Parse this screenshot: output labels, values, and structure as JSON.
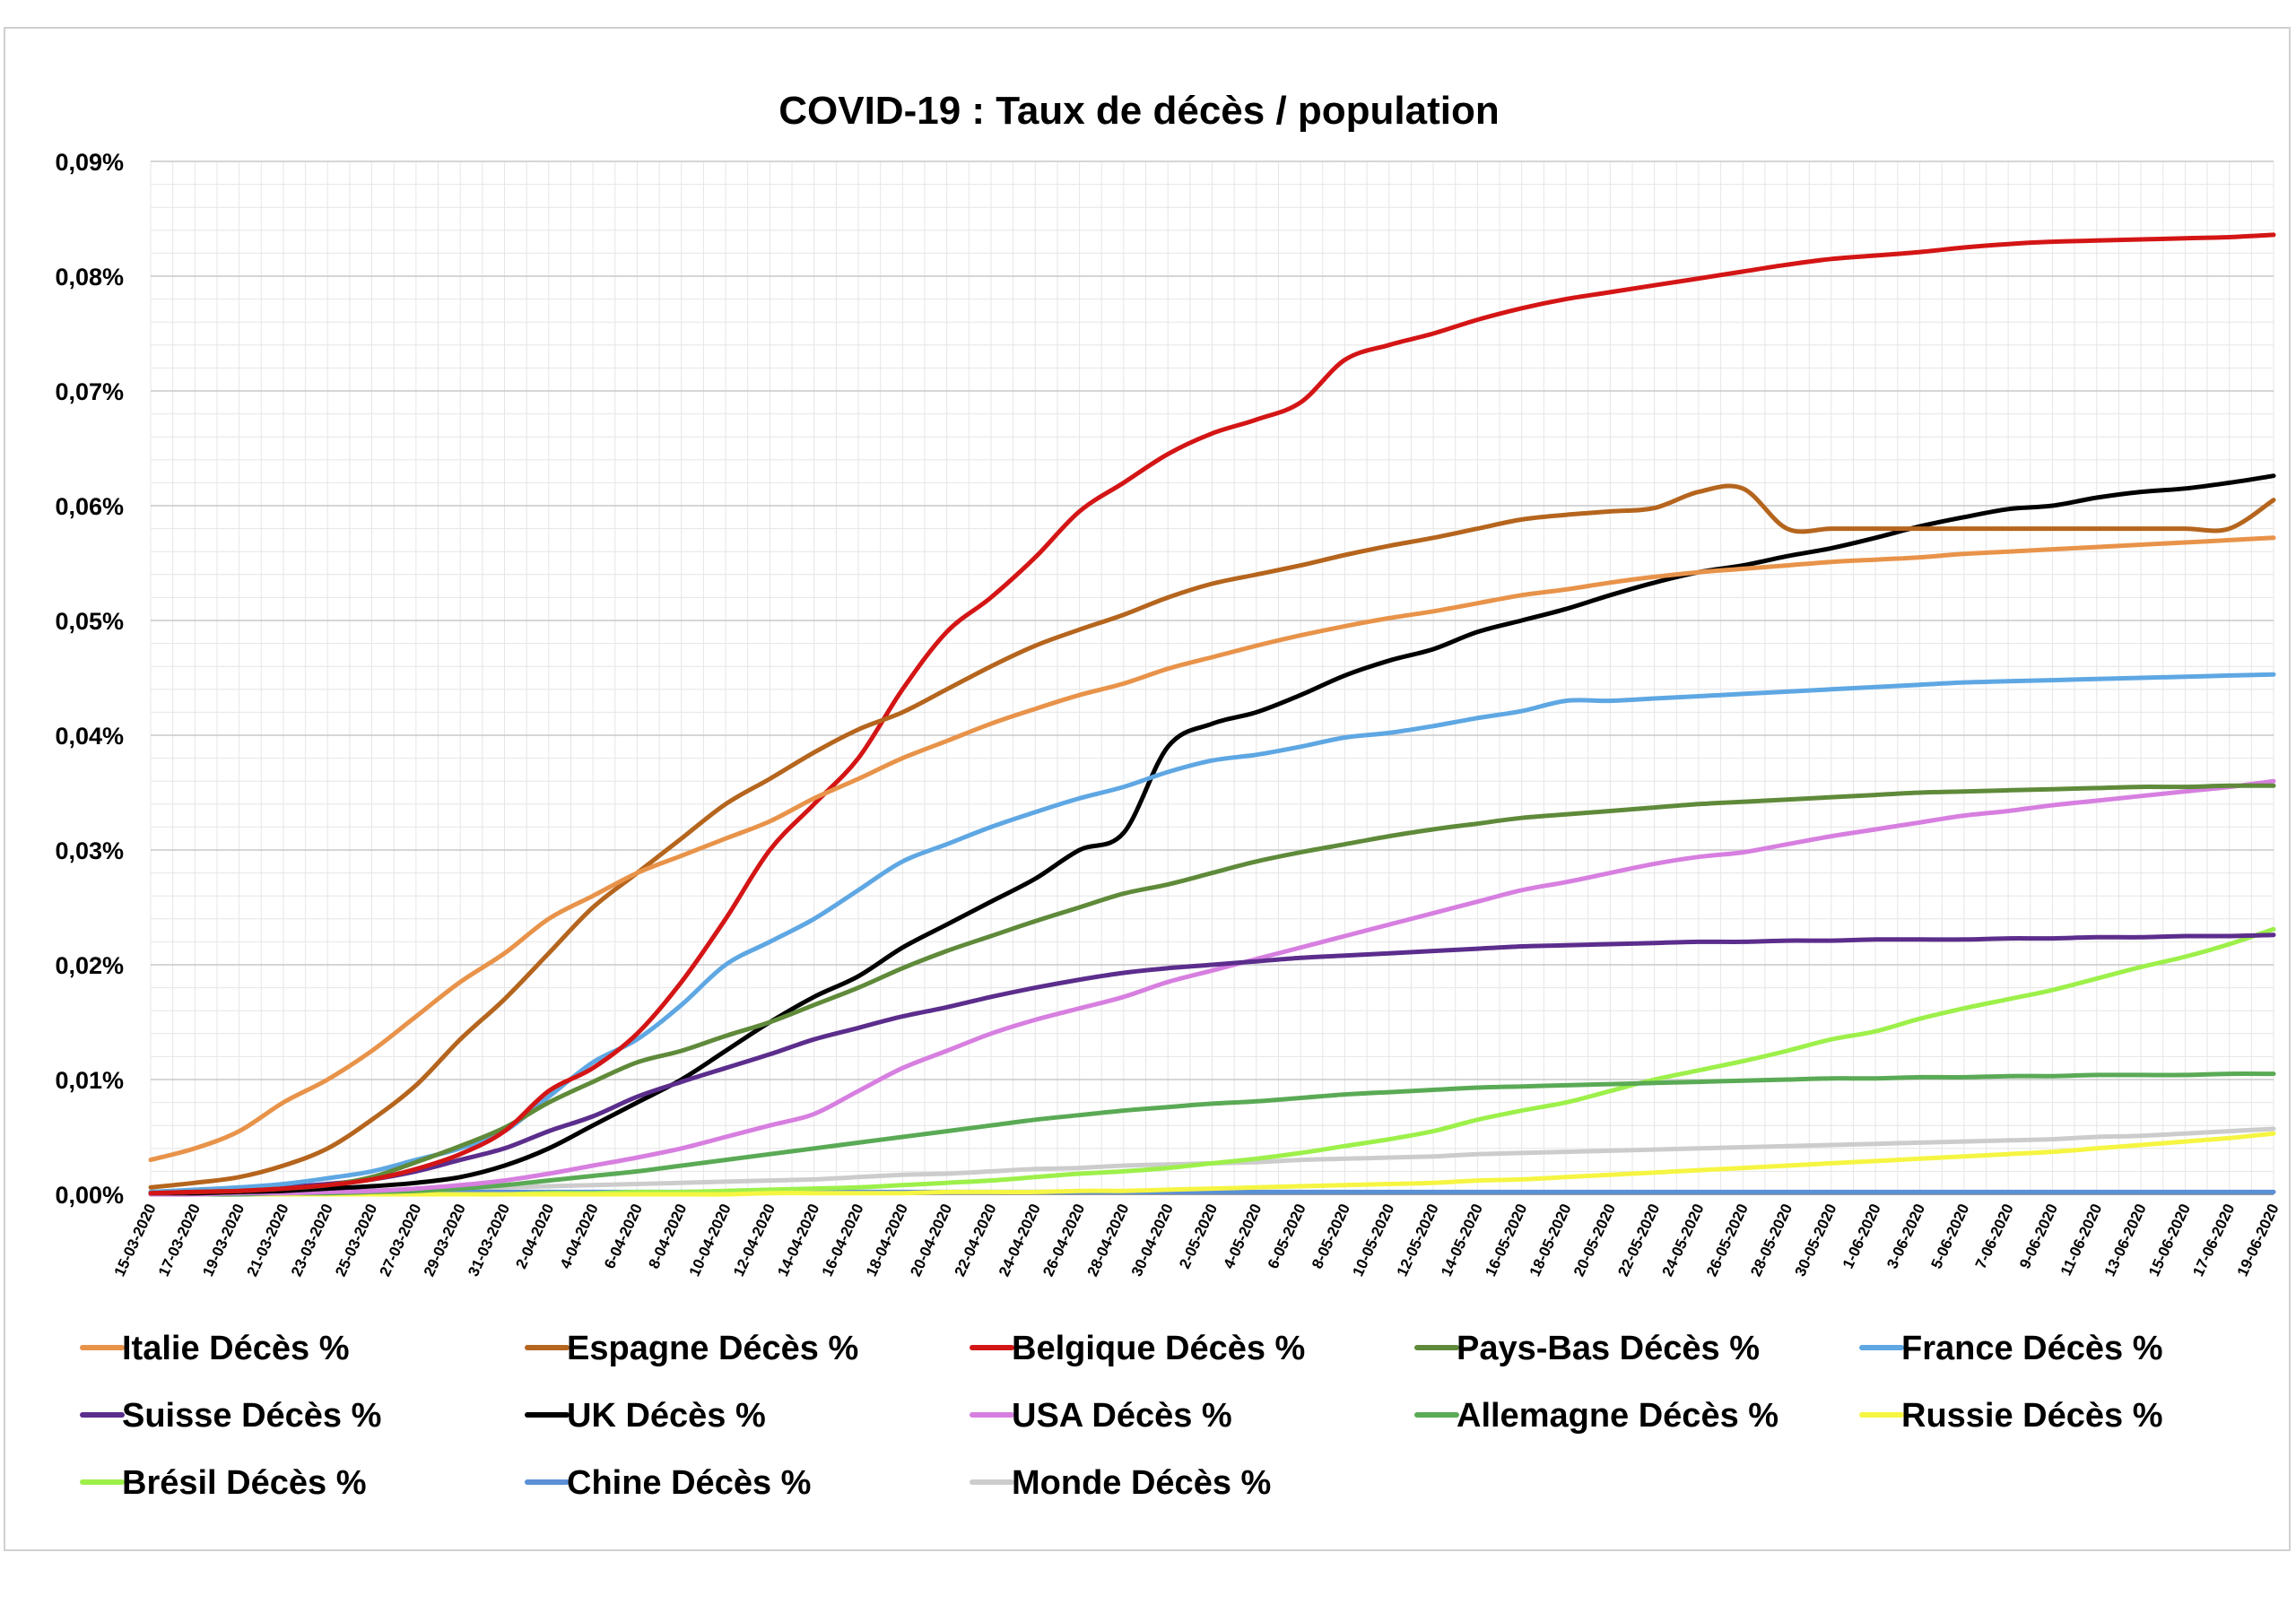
{
  "chart_data": {
    "type": "line",
    "title": "COVID-19 : Taux de décès / population",
    "xlabel": "",
    "ylabel": "",
    "y_unit": "%",
    "ylim": [
      0,
      0.09
    ],
    "y_ticks": [
      "0,00%",
      "0,01%",
      "0,02%",
      "0,03%",
      "0,04%",
      "0,05%",
      "0,06%",
      "0,07%",
      "0,08%",
      "0,09%"
    ],
    "x": [
      "15-03-2020",
      "17-03-2020",
      "19-03-2020",
      "21-03-2020",
      "23-03-2020",
      "25-03-2020",
      "27-03-2020",
      "29-03-2020",
      "31-03-2020",
      "2-04-2020",
      "4-04-2020",
      "6-04-2020",
      "8-04-2020",
      "10-04-2020",
      "12-04-2020",
      "14-04-2020",
      "16-04-2020",
      "18-04-2020",
      "20-04-2020",
      "22-04-2020",
      "24-04-2020",
      "26-04-2020",
      "28-04-2020",
      "30-04-2020",
      "2-05-2020",
      "4-05-2020",
      "6-05-2020",
      "8-05-2020",
      "10-05-2020",
      "12-05-2020",
      "14-05-2020",
      "16-05-2020",
      "18-05-2020",
      "20-05-2020",
      "22-05-2020",
      "24-05-2020",
      "26-05-2020",
      "28-05-2020",
      "30-05-2020",
      "1-06-2020",
      "3-06-2020",
      "5-06-2020",
      "7-06-2020",
      "9-06-2020",
      "11-06-2020",
      "13-06-2020",
      "15-06-2020",
      "17-06-2020",
      "19-06-2020"
    ],
    "grid": true,
    "legend_position": "bottom",
    "series": [
      {
        "name": "Italie Décès %",
        "color": "#e8934a",
        "values": [
          0.003,
          0.004,
          0.0055,
          0.008,
          0.01,
          0.0125,
          0.0155,
          0.0185,
          0.021,
          0.024,
          0.026,
          0.028,
          0.0295,
          0.031,
          0.0325,
          0.0345,
          0.0362,
          0.038,
          0.0395,
          0.041,
          0.0423,
          0.0435,
          0.0445,
          0.0458,
          0.0468,
          0.0478,
          0.0487,
          0.0495,
          0.0502,
          0.0508,
          0.0515,
          0.0522,
          0.0527,
          0.0533,
          0.0538,
          0.0542,
          0.0545,
          0.0548,
          0.0551,
          0.0553,
          0.0555,
          0.0558,
          0.056,
          0.0562,
          0.0564,
          0.0566,
          0.0568,
          0.057,
          0.0572
        ]
      },
      {
        "name": "Espagne Décès %",
        "color": "#b5651d",
        "values": [
          0.0006,
          0.001,
          0.0015,
          0.0025,
          0.004,
          0.0065,
          0.0095,
          0.0135,
          0.017,
          0.021,
          0.025,
          0.028,
          0.031,
          0.034,
          0.0362,
          0.0385,
          0.0405,
          0.042,
          0.044,
          0.046,
          0.0478,
          0.0492,
          0.0505,
          0.052,
          0.0532,
          0.054,
          0.0548,
          0.0557,
          0.0565,
          0.0572,
          0.058,
          0.0588,
          0.0592,
          0.0595,
          0.0598,
          0.0612,
          0.0615,
          0.058,
          0.058,
          0.058,
          0.058,
          0.058,
          0.058,
          0.058,
          0.058,
          0.058,
          0.058,
          0.058,
          0.0605
        ]
      },
      {
        "name": "Belgique Décès %",
        "color": "#d41515",
        "values": [
          0.0001,
          0.0002,
          0.0003,
          0.0005,
          0.0008,
          0.0013,
          0.0022,
          0.0035,
          0.0055,
          0.009,
          0.011,
          0.014,
          0.0185,
          0.024,
          0.03,
          0.034,
          0.038,
          0.044,
          0.049,
          0.052,
          0.0555,
          0.0595,
          0.062,
          0.0645,
          0.0663,
          0.0675,
          0.069,
          0.0727,
          0.074,
          0.075,
          0.0762,
          0.0772,
          0.078,
          0.0786,
          0.0792,
          0.0798,
          0.0804,
          0.081,
          0.0815,
          0.0818,
          0.0821,
          0.0825,
          0.0828,
          0.083,
          0.0831,
          0.0832,
          0.0833,
          0.0834,
          0.0836
        ]
      },
      {
        "name": "Pays-Bas Décès %",
        "color": "#5f8a3a",
        "values": [
          0.0001,
          0.0002,
          0.0003,
          0.0005,
          0.0008,
          0.0015,
          0.0028,
          0.0042,
          0.0058,
          0.008,
          0.0098,
          0.0115,
          0.0125,
          0.0138,
          0.015,
          0.0165,
          0.018,
          0.0197,
          0.0212,
          0.0225,
          0.0238,
          0.025,
          0.0262,
          0.027,
          0.028,
          0.029,
          0.0298,
          0.0305,
          0.0312,
          0.0318,
          0.0323,
          0.0328,
          0.0331,
          0.0334,
          0.0337,
          0.034,
          0.0342,
          0.0344,
          0.0346,
          0.0348,
          0.035,
          0.0351,
          0.0352,
          0.0353,
          0.0354,
          0.0355,
          0.0355,
          0.0356,
          0.0356
        ]
      },
      {
        "name": "France Décès %",
        "color": "#5ea7e3",
        "values": [
          0.0002,
          0.0004,
          0.0006,
          0.0009,
          0.0014,
          0.002,
          0.003,
          0.004,
          0.0055,
          0.0085,
          0.0115,
          0.0135,
          0.0165,
          0.02,
          0.022,
          0.024,
          0.0265,
          0.029,
          0.0305,
          0.032,
          0.0333,
          0.0345,
          0.0355,
          0.0368,
          0.0378,
          0.0383,
          0.039,
          0.0398,
          0.0402,
          0.0408,
          0.0415,
          0.0421,
          0.043,
          0.043,
          0.0432,
          0.0434,
          0.0436,
          0.0438,
          0.044,
          0.0442,
          0.0444,
          0.0446,
          0.0447,
          0.0448,
          0.0449,
          0.045,
          0.0451,
          0.0452,
          0.0453
        ]
      },
      {
        "name": "Suisse Décès %",
        "color": "#5b2d8c",
        "values": [
          0.0001,
          0.0002,
          0.0003,
          0.0006,
          0.0009,
          0.0013,
          0.002,
          0.003,
          0.004,
          0.0055,
          0.0068,
          0.0085,
          0.0098,
          0.011,
          0.0122,
          0.0135,
          0.0145,
          0.0155,
          0.0163,
          0.0172,
          0.018,
          0.0187,
          0.0193,
          0.0197,
          0.02,
          0.0203,
          0.0206,
          0.0208,
          0.021,
          0.0212,
          0.0214,
          0.0216,
          0.0217,
          0.0218,
          0.0219,
          0.022,
          0.022,
          0.0221,
          0.0221,
          0.0222,
          0.0222,
          0.0222,
          0.0223,
          0.0223,
          0.0224,
          0.0224,
          0.0225,
          0.0225,
          0.0226
        ]
      },
      {
        "name": "UK Décès %",
        "color": "#000000",
        "values": [
          0.0001,
          0.0001,
          0.0002,
          0.0003,
          0.0005,
          0.0007,
          0.001,
          0.0015,
          0.0025,
          0.004,
          0.006,
          0.008,
          0.01,
          0.0125,
          0.015,
          0.0172,
          0.019,
          0.0215,
          0.0235,
          0.0255,
          0.0275,
          0.03,
          0.0315,
          0.039,
          0.041,
          0.042,
          0.0435,
          0.0452,
          0.0465,
          0.0475,
          0.049,
          0.05,
          0.051,
          0.0522,
          0.0533,
          0.0542,
          0.0548,
          0.0556,
          0.0563,
          0.0572,
          0.0582,
          0.059,
          0.0597,
          0.06,
          0.0607,
          0.0612,
          0.0615,
          0.062,
          0.0626
        ]
      },
      {
        "name": "USA Décès %",
        "color": "#d77fe0",
        "values": [
          0.0,
          0.0,
          0.0001,
          0.0001,
          0.0002,
          0.0003,
          0.0005,
          0.0008,
          0.0012,
          0.0018,
          0.0025,
          0.0032,
          0.004,
          0.005,
          0.006,
          0.007,
          0.009,
          0.011,
          0.0125,
          0.014,
          0.0152,
          0.0162,
          0.0172,
          0.0185,
          0.0195,
          0.0205,
          0.0215,
          0.0225,
          0.0235,
          0.0245,
          0.0255,
          0.0265,
          0.0272,
          0.028,
          0.0288,
          0.0294,
          0.0298,
          0.0305,
          0.0312,
          0.0318,
          0.0324,
          0.033,
          0.0334,
          0.0339,
          0.0343,
          0.0347,
          0.0351,
          0.0355,
          0.036
        ]
      },
      {
        "name": "Allemagne Décès %",
        "color": "#5aaa55",
        "values": [
          0.0,
          0.0,
          0.0,
          0.0001,
          0.0001,
          0.0002,
          0.0003,
          0.0005,
          0.0008,
          0.0012,
          0.0016,
          0.002,
          0.0025,
          0.003,
          0.0035,
          0.004,
          0.0045,
          0.005,
          0.0055,
          0.006,
          0.0065,
          0.0069,
          0.0073,
          0.0076,
          0.0079,
          0.0081,
          0.0084,
          0.0087,
          0.0089,
          0.0091,
          0.0093,
          0.0094,
          0.0095,
          0.0096,
          0.0097,
          0.0098,
          0.0099,
          0.01,
          0.0101,
          0.0101,
          0.0102,
          0.0102,
          0.0103,
          0.0103,
          0.0104,
          0.0104,
          0.0104,
          0.0105,
          0.0105
        ]
      },
      {
        "name": "Russie Décès %",
        "color": "#f5f542",
        "values": [
          0.0,
          0.0,
          0.0,
          0.0,
          0.0,
          0.0,
          0.0,
          0.0,
          0.0,
          0.0,
          0.0,
          0.0,
          0.0,
          0.0,
          0.0001,
          0.0001,
          0.0001,
          0.0001,
          0.0002,
          0.0002,
          0.0002,
          0.0003,
          0.0003,
          0.0004,
          0.0005,
          0.0006,
          0.0007,
          0.0008,
          0.0009,
          0.001,
          0.0012,
          0.0013,
          0.0015,
          0.0017,
          0.0019,
          0.0021,
          0.0023,
          0.0025,
          0.0027,
          0.0029,
          0.0031,
          0.0033,
          0.0035,
          0.0037,
          0.004,
          0.0043,
          0.0046,
          0.0049,
          0.0053
        ]
      },
      {
        "name": "Brésil Décès %",
        "color": "#9df04a",
        "values": [
          0.0,
          0.0,
          0.0,
          0.0,
          0.0,
          0.0,
          0.0,
          0.0,
          0.0,
          0.0001,
          0.0001,
          0.0002,
          0.0002,
          0.0003,
          0.0004,
          0.0005,
          0.0006,
          0.0008,
          0.001,
          0.0012,
          0.0015,
          0.0018,
          0.002,
          0.0023,
          0.0027,
          0.0031,
          0.0036,
          0.0042,
          0.0048,
          0.0055,
          0.0065,
          0.0073,
          0.008,
          0.009,
          0.01,
          0.0108,
          0.0116,
          0.0125,
          0.0135,
          0.0142,
          0.0153,
          0.0162,
          0.017,
          0.0178,
          0.0188,
          0.0198,
          0.0207,
          0.0218,
          0.0231
        ]
      },
      {
        "name": "Chine Décès %",
        "color": "#5b8fd6",
        "values": [
          0.0002,
          0.0002,
          0.0002,
          0.0002,
          0.0002,
          0.0002,
          0.0002,
          0.0002,
          0.0002,
          0.0002,
          0.0002,
          0.0002,
          0.0002,
          0.0002,
          0.0002,
          0.0002,
          0.0002,
          0.0002,
          0.0002,
          0.0002,
          0.0002,
          0.0002,
          0.0002,
          0.0002,
          0.0002,
          0.0002,
          0.0002,
          0.0002,
          0.0002,
          0.0002,
          0.0002,
          0.0002,
          0.0002,
          0.0002,
          0.0002,
          0.0002,
          0.0002,
          0.0002,
          0.0002,
          0.0002,
          0.0002,
          0.0002,
          0.0002,
          0.0002,
          0.0002,
          0.0002,
          0.0002,
          0.0002,
          0.0002
        ]
      },
      {
        "name": "Monde Décès %",
        "color": "#cccccc",
        "values": [
          0.0001,
          0.0001,
          0.0001,
          0.0002,
          0.0002,
          0.0003,
          0.0004,
          0.0005,
          0.0006,
          0.0007,
          0.0008,
          0.0009,
          0.001,
          0.0011,
          0.0012,
          0.0013,
          0.0015,
          0.0017,
          0.0018,
          0.002,
          0.0022,
          0.0023,
          0.0025,
          0.0026,
          0.0027,
          0.0028,
          0.003,
          0.0031,
          0.0032,
          0.0033,
          0.0035,
          0.0036,
          0.0037,
          0.0038,
          0.0039,
          0.004,
          0.0041,
          0.0042,
          0.0043,
          0.0044,
          0.0045,
          0.0046,
          0.0047,
          0.0048,
          0.005,
          0.0051,
          0.0053,
          0.0055,
          0.0057
        ]
      }
    ]
  }
}
